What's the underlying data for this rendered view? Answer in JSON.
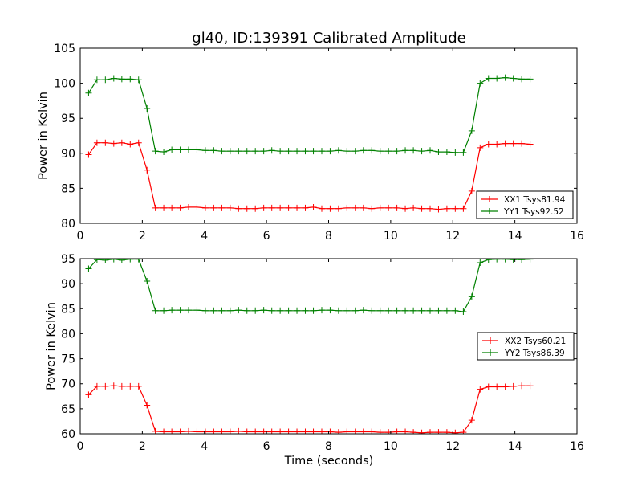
{
  "chart_data": [
    {
      "type": "line",
      "title": "gl40, ID:139391 Calibrated Amplitude",
      "xlabel": "",
      "ylabel": "Power in Kelvin",
      "xlim": [
        0,
        16
      ],
      "ylim": [
        80,
        105
      ],
      "xticks": [
        0,
        2,
        4,
        6,
        8,
        10,
        12,
        14,
        16
      ],
      "yticks": [
        80,
        85,
        90,
        95,
        100,
        105
      ],
      "legend_position": "lower-right",
      "x": [
        0.27,
        0.54,
        0.81,
        1.08,
        1.34,
        1.61,
        1.88,
        2.15,
        2.42,
        2.69,
        2.95,
        3.22,
        3.49,
        3.76,
        4.03,
        4.3,
        4.56,
        4.83,
        5.1,
        5.37,
        5.64,
        5.91,
        6.17,
        6.44,
        6.71,
        6.98,
        7.25,
        7.51,
        7.78,
        8.05,
        8.32,
        8.59,
        8.86,
        9.12,
        9.39,
        9.66,
        9.93,
        10.2,
        10.47,
        10.73,
        11.0,
        11.27,
        11.54,
        11.81,
        12.08,
        12.34,
        12.61,
        12.88,
        13.15,
        13.42,
        13.69,
        13.95,
        14.22,
        14.49
      ],
      "series": [
        {
          "name": "XX1 Tsys81.94",
          "color": "#ff0000",
          "values": [
            89.8,
            91.5,
            91.5,
            91.4,
            91.5,
            91.3,
            91.5,
            87.6,
            82.2,
            82.2,
            82.2,
            82.2,
            82.3,
            82.3,
            82.2,
            82.2,
            82.2,
            82.2,
            82.1,
            82.1,
            82.1,
            82.2,
            82.2,
            82.2,
            82.2,
            82.2,
            82.2,
            82.3,
            82.1,
            82.1,
            82.1,
            82.2,
            82.2,
            82.2,
            82.1,
            82.2,
            82.2,
            82.2,
            82.1,
            82.2,
            82.1,
            82.1,
            82.0,
            82.1,
            82.1,
            82.1,
            84.6,
            90.8,
            91.3,
            91.3,
            91.4,
            91.4,
            91.4,
            91.3
          ]
        },
        {
          "name": "YY1 Tsys92.52",
          "color": "#008000",
          "values": [
            98.6,
            100.5,
            100.5,
            100.7,
            100.6,
            100.6,
            100.5,
            96.4,
            90.3,
            90.2,
            90.5,
            90.5,
            90.5,
            90.5,
            90.4,
            90.4,
            90.3,
            90.3,
            90.3,
            90.3,
            90.3,
            90.3,
            90.4,
            90.3,
            90.3,
            90.3,
            90.3,
            90.3,
            90.3,
            90.3,
            90.4,
            90.3,
            90.3,
            90.4,
            90.4,
            90.3,
            90.3,
            90.3,
            90.4,
            90.4,
            90.3,
            90.4,
            90.2,
            90.2,
            90.1,
            90.1,
            93.2,
            100.0,
            100.7,
            100.7,
            100.8,
            100.7,
            100.6,
            100.6
          ]
        }
      ]
    },
    {
      "type": "line",
      "title": "",
      "xlabel": "Time (seconds)",
      "ylabel": "Power in Kelvin",
      "xlim": [
        0,
        16
      ],
      "ylim": [
        60,
        95
      ],
      "xticks": [
        0,
        2,
        4,
        6,
        8,
        10,
        12,
        14,
        16
      ],
      "yticks": [
        60,
        65,
        70,
        75,
        80,
        85,
        90,
        95
      ],
      "legend_position": "center-right",
      "x": [
        0.27,
        0.54,
        0.81,
        1.08,
        1.34,
        1.61,
        1.88,
        2.15,
        2.42,
        2.69,
        2.95,
        3.22,
        3.49,
        3.76,
        4.03,
        4.3,
        4.56,
        4.83,
        5.1,
        5.37,
        5.64,
        5.91,
        6.17,
        6.44,
        6.71,
        6.98,
        7.25,
        7.51,
        7.78,
        8.05,
        8.32,
        8.59,
        8.86,
        9.12,
        9.39,
        9.66,
        9.93,
        10.2,
        10.47,
        10.73,
        11.0,
        11.27,
        11.54,
        11.81,
        12.08,
        12.34,
        12.61,
        12.88,
        13.15,
        13.42,
        13.69,
        13.95,
        14.22,
        14.49
      ],
      "series": [
        {
          "name": "XX2 Tsys60.21",
          "color": "#ff0000",
          "values": [
            67.8,
            69.5,
            69.5,
            69.6,
            69.5,
            69.5,
            69.5,
            65.7,
            60.5,
            60.4,
            60.4,
            60.4,
            60.5,
            60.4,
            60.4,
            60.4,
            60.4,
            60.4,
            60.5,
            60.4,
            60.4,
            60.4,
            60.4,
            60.4,
            60.4,
            60.4,
            60.4,
            60.4,
            60.4,
            60.4,
            60.3,
            60.4,
            60.4,
            60.4,
            60.4,
            60.3,
            60.3,
            60.4,
            60.4,
            60.3,
            60.2,
            60.3,
            60.3,
            60.3,
            60.2,
            60.3,
            62.7,
            68.9,
            69.4,
            69.4,
            69.4,
            69.5,
            69.6,
            69.6
          ]
        },
        {
          "name": "YY2 Tsys86.39",
          "color": "#008000",
          "values": [
            93.0,
            94.8,
            94.7,
            94.9,
            94.7,
            94.9,
            94.9,
            90.5,
            84.6,
            84.6,
            84.7,
            84.7,
            84.7,
            84.7,
            84.6,
            84.6,
            84.6,
            84.6,
            84.7,
            84.6,
            84.6,
            84.7,
            84.6,
            84.6,
            84.6,
            84.6,
            84.6,
            84.6,
            84.7,
            84.7,
            84.6,
            84.6,
            84.6,
            84.7,
            84.6,
            84.6,
            84.6,
            84.6,
            84.6,
            84.6,
            84.6,
            84.6,
            84.6,
            84.6,
            84.6,
            84.4,
            87.4,
            94.2,
            94.8,
            94.9,
            94.9,
            94.8,
            94.8,
            94.9
          ]
        }
      ]
    }
  ]
}
